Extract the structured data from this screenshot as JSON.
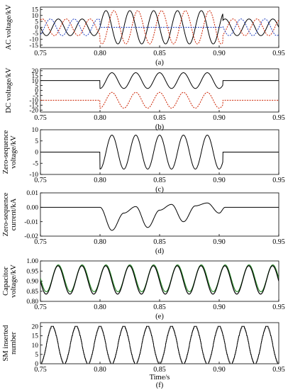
{
  "chart_data": [
    {
      "panel": "(a)",
      "type": "line",
      "ylabel": "AC voltage/kV",
      "xlim": [
        0.75,
        0.95
      ],
      "ylim": [
        -17,
        17
      ],
      "xticks": [
        "0.75",
        "0.80",
        "0.85",
        "0.90",
        "0.95"
      ],
      "yticks": [
        "15",
        "10",
        "5",
        "0",
        "-5",
        "-10",
        "-15"
      ],
      "caption": "(a)",
      "series_colors": [
        "#000000",
        "#cc2200",
        "#1f3fbf"
      ],
      "description": "three-phase AC voltages, amplitude ~7 kV before 0.80 s and after 0.90 s; during 0.80–0.90 s two phases swing to ~14 kV while the third stays near 0",
      "pre_amplitude": 7,
      "fault_amplitude": 14,
      "fault_start": 0.8,
      "fault_end": 0.903,
      "frequency_hz": 50
    },
    {
      "panel": "(b)",
      "type": "line",
      "ylabel": "DC voltage/kV",
      "xlim": [
        0.75,
        0.95
      ],
      "ylim": [
        -22,
        22
      ],
      "xticks": [
        "0.75",
        "0.80",
        "0.85",
        "0.90",
        "0.95"
      ],
      "yticks": [
        "20",
        "15",
        "10",
        "5",
        "0",
        "-5",
        "-10",
        "-15",
        "-20"
      ],
      "caption": "(b)",
      "series_colors": [
        "#000000",
        "#cc2200"
      ],
      "description": "positive pole near +10 kV and negative pole near -10 kV; during fault both oscillate with ~8 kV amplitude around their levels",
      "positive_level": 10,
      "negative_level": -10,
      "fault_amplitude": 8,
      "fault_start": 0.8,
      "fault_end": 0.903
    },
    {
      "panel": "(c)",
      "type": "line",
      "ylabel": "Zero-sequence voltage/kV",
      "xlim": [
        0.75,
        0.95
      ],
      "ylim": [
        -10,
        10
      ],
      "xticks": [
        "0.75",
        "0.80",
        "0.85",
        "0.90",
        "0.95"
      ],
      "yticks": [
        "10",
        "5",
        "0",
        "-5",
        "-10"
      ],
      "caption": "(c)",
      "series_colors": [
        "#000000"
      ],
      "description": "near 0 outside fault; 50 Hz oscillation of ~8 kV amplitude from 0.80 to 0.903 s",
      "fault_amplitude": 8,
      "fault_start": 0.8,
      "fault_end": 0.903
    },
    {
      "panel": "(d)",
      "type": "line",
      "ylabel": "Zero-sequence current/kA",
      "xlim": [
        0.75,
        0.95
      ],
      "ylim": [
        -0.02,
        0.01
      ],
      "xticks": [
        "0.75",
        "0.80",
        "0.85",
        "0.90",
        "0.95"
      ],
      "yticks": [
        "0.01",
        "0.00",
        "-0.01",
        "-0.02"
      ],
      "caption": "(d)",
      "series_colors": [
        "#000000"
      ],
      "description": "zero-sequence current near 0; during fault oscillates with negative offset decaying toward 0",
      "points": [
        [
          0.75,
          0
        ],
        [
          0.8,
          0
        ],
        [
          0.81,
          -0.016
        ],
        [
          0.82,
          -0.004
        ],
        [
          0.83,
          0.0005
        ],
        [
          0.84,
          -0.014
        ],
        [
          0.85,
          -0.002
        ],
        [
          0.86,
          0.002
        ],
        [
          0.87,
          -0.01
        ],
        [
          0.88,
          0.001
        ],
        [
          0.89,
          0.003
        ],
        [
          0.9,
          -0.004
        ],
        [
          0.905,
          0
        ],
        [
          0.95,
          0
        ]
      ]
    },
    {
      "panel": "(e)",
      "type": "line",
      "ylabel": "Capacitor voltage/kV",
      "xlim": [
        0.75,
        0.95
      ],
      "ylim": [
        0.8,
        1.0
      ],
      "xticks": [
        "0.75",
        "0.80",
        "0.85",
        "0.90",
        "0.95"
      ],
      "yticks": [
        "1.00",
        "0.95",
        "0.90",
        "0.85",
        "0.80"
      ],
      "caption": "(e)",
      "series_colors": [
        "#2e8b2e",
        "#000000"
      ],
      "description": "submodule capacitor voltages ripple between ~0.84 and ~0.98 kV at 50 Hz",
      "min": 0.84,
      "max": 0.98
    },
    {
      "panel": "(f)",
      "type": "line",
      "ylabel": "SM inserted number",
      "xlabel": "Time/s",
      "xlim": [
        0.75,
        0.95
      ],
      "ylim": [
        0,
        22
      ],
      "xticks": [
        "0.75",
        "0.80",
        "0.85",
        "0.90",
        "0.95"
      ],
      "yticks": [
        "20",
        "15",
        "10",
        "5",
        "0"
      ],
      "caption": "(f)",
      "series_colors": [
        "#000000"
      ],
      "description": "staircase sinusoid of inserted submodules varying between 0 and 20 at 50 Hz",
      "min": 0,
      "max": 20
    }
  ]
}
